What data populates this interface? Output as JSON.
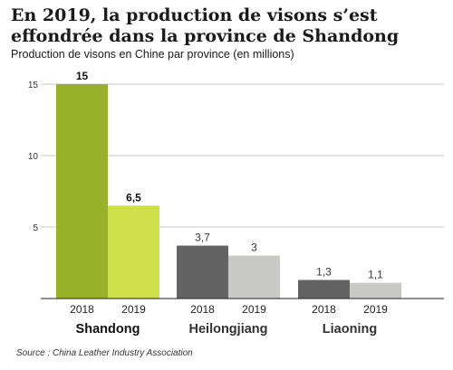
{
  "title": "En 2019, la production de visons s’est effondrée dans la province de Shandong",
  "subtitle": "Production de visons en Chine par province (en millions)",
  "source": "Source : China Leather Industry Association",
  "colors": {
    "shandong_2018": "#99b02a",
    "shandong_2019": "#cde04a",
    "other_2018": "#636363",
    "other_2019": "#c8c8c4",
    "grid": "#c8c8c8",
    "axis": "#222222"
  },
  "chart_data": {
    "type": "bar",
    "ylim": [
      0,
      15
    ],
    "yticks": [
      "0",
      "5",
      "10",
      "15"
    ],
    "grid": true,
    "groups": [
      {
        "name": "Shandong",
        "bars": [
          {
            "label": "2018",
            "value": 15,
            "value_label": "15"
          },
          {
            "label": "2019",
            "value": 6.5,
            "value_label": "6,5"
          }
        ]
      },
      {
        "name": "Heilongjiang",
        "bars": [
          {
            "label": "2018",
            "value": 3.7,
            "value_label": "3,7"
          },
          {
            "label": "2019",
            "value": 3,
            "value_label": "3"
          }
        ]
      },
      {
        "name": "Liaoning",
        "bars": [
          {
            "label": "2018",
            "value": 1.3,
            "value_label": "1,3"
          },
          {
            "label": "2019",
            "value": 1.1,
            "value_label": "1,1"
          }
        ]
      }
    ]
  }
}
